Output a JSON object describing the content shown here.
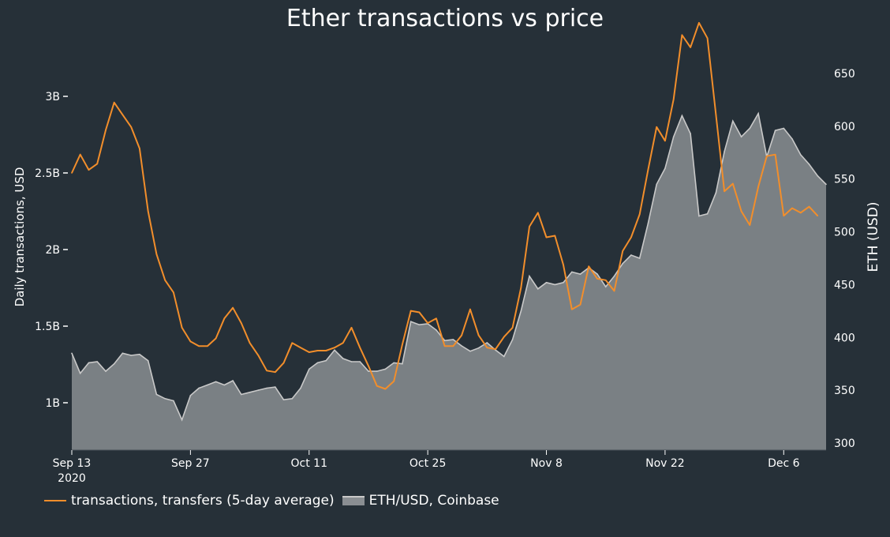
{
  "chart_data": {
    "type": "line+area",
    "title": "Ether transactions vs price",
    "ylabel_left": "Daily transactions, USD",
    "ylabel_right": "ETH (USD)",
    "x_start": "2020-09-13",
    "x_end": "2020-12-11",
    "x_ticks": [
      {
        "date": "2020-09-13",
        "label": "Sep 13",
        "sublabel": "2020"
      },
      {
        "date": "2020-09-27",
        "label": "Sep 27"
      },
      {
        "date": "2020-10-11",
        "label": "Oct 11"
      },
      {
        "date": "2020-10-25",
        "label": "Oct 25"
      },
      {
        "date": "2020-11-08",
        "label": "Nov 8"
      },
      {
        "date": "2020-11-22",
        "label": "Nov 22"
      },
      {
        "date": "2020-12-06",
        "label": "Dec 6"
      }
    ],
    "y_left": {
      "range": [
        0.7,
        3.55
      ],
      "ticks": [
        1,
        1.5,
        2,
        2.5,
        3
      ],
      "tick_labels": [
        "1B",
        "1.5B",
        "2B",
        "2.5B",
        "3B"
      ]
    },
    "y_right": {
      "range": [
        300,
        700
      ],
      "ticks": [
        300,
        350,
        400,
        450,
        500,
        550,
        600,
        650
      ],
      "tick_labels": [
        "300",
        "350",
        "400",
        "450",
        "500",
        "550",
        "600",
        "650"
      ]
    },
    "series": [
      {
        "name": "transactions, transfers (5-day average)",
        "axis": "left",
        "color": "#f28e2b",
        "unit": "billion USD",
        "points": [
          [
            "2020-09-13",
            2.5
          ],
          [
            "2020-09-14",
            2.62
          ],
          [
            "2020-09-15",
            2.52
          ],
          [
            "2020-09-16",
            2.56
          ],
          [
            "2020-09-17",
            2.78
          ],
          [
            "2020-09-18",
            2.96
          ],
          [
            "2020-09-19",
            2.88
          ],
          [
            "2020-09-20",
            2.8
          ],
          [
            "2020-09-21",
            2.66
          ],
          [
            "2020-09-22",
            2.25
          ],
          [
            "2020-09-23",
            1.97
          ],
          [
            "2020-09-24",
            1.8
          ],
          [
            "2020-09-25",
            1.72
          ],
          [
            "2020-09-26",
            1.49
          ],
          [
            "2020-09-27",
            1.4
          ],
          [
            "2020-09-28",
            1.37
          ],
          [
            "2020-09-29",
            1.37
          ],
          [
            "2020-09-30",
            1.42
          ],
          [
            "2020-10-01",
            1.55
          ],
          [
            "2020-10-02",
            1.62
          ],
          [
            "2020-10-03",
            1.52
          ],
          [
            "2020-10-04",
            1.39
          ],
          [
            "2020-10-05",
            1.31
          ],
          [
            "2020-10-06",
            1.21
          ],
          [
            "2020-10-07",
            1.2
          ],
          [
            "2020-10-08",
            1.26
          ],
          [
            "2020-10-09",
            1.39
          ],
          [
            "2020-10-10",
            1.36
          ],
          [
            "2020-10-11",
            1.33
          ],
          [
            "2020-10-12",
            1.34
          ],
          [
            "2020-10-13",
            1.34
          ],
          [
            "2020-10-14",
            1.36
          ],
          [
            "2020-10-15",
            1.39
          ],
          [
            "2020-10-16",
            1.49
          ],
          [
            "2020-10-17",
            1.36
          ],
          [
            "2020-10-18",
            1.24
          ],
          [
            "2020-10-19",
            1.11
          ],
          [
            "2020-10-20",
            1.09
          ],
          [
            "2020-10-21",
            1.14
          ],
          [
            "2020-10-22",
            1.38
          ],
          [
            "2020-10-23",
            1.6
          ],
          [
            "2020-10-24",
            1.59
          ],
          [
            "2020-10-25",
            1.52
          ],
          [
            "2020-10-26",
            1.55
          ],
          [
            "2020-10-27",
            1.37
          ],
          [
            "2020-10-28",
            1.37
          ],
          [
            "2020-10-29",
            1.44
          ],
          [
            "2020-10-30",
            1.61
          ],
          [
            "2020-10-31",
            1.44
          ],
          [
            "2020-11-01",
            1.36
          ],
          [
            "2020-11-02",
            1.35
          ],
          [
            "2020-11-03",
            1.43
          ],
          [
            "2020-11-04",
            1.49
          ],
          [
            "2020-11-05",
            1.75
          ],
          [
            "2020-11-06",
            2.15
          ],
          [
            "2020-11-07",
            2.24
          ],
          [
            "2020-11-08",
            2.08
          ],
          [
            "2020-11-09",
            2.09
          ],
          [
            "2020-11-10",
            1.9
          ],
          [
            "2020-11-11",
            1.61
          ],
          [
            "2020-11-12",
            1.64
          ],
          [
            "2020-11-13",
            1.89
          ],
          [
            "2020-11-14",
            1.81
          ],
          [
            "2020-11-15",
            1.8
          ],
          [
            "2020-11-16",
            1.73
          ],
          [
            "2020-11-17",
            1.99
          ],
          [
            "2020-11-18",
            2.08
          ],
          [
            "2020-11-19",
            2.23
          ],
          [
            "2020-11-20",
            2.52
          ],
          [
            "2020-11-21",
            2.8
          ],
          [
            "2020-11-22",
            2.71
          ],
          [
            "2020-11-23",
            2.98
          ],
          [
            "2020-11-24",
            3.4
          ],
          [
            "2020-11-25",
            3.32
          ],
          [
            "2020-11-26",
            3.48
          ],
          [
            "2020-11-27",
            3.38
          ],
          [
            "2020-11-28",
            2.88
          ],
          [
            "2020-11-29",
            2.38
          ],
          [
            "2020-11-30",
            2.43
          ],
          [
            "2020-12-01",
            2.25
          ],
          [
            "2020-12-02",
            2.16
          ],
          [
            "2020-12-03",
            2.41
          ],
          [
            "2020-12-04",
            2.61
          ],
          [
            "2020-12-05",
            2.62
          ],
          [
            "2020-12-06",
            2.22
          ],
          [
            "2020-12-07",
            2.27
          ],
          [
            "2020-12-08",
            2.24
          ],
          [
            "2020-12-09",
            2.28
          ],
          [
            "2020-12-10",
            2.22
          ]
        ]
      },
      {
        "name": "ETH/USD, Coinbase",
        "axis": "right",
        "color": "#8a8e92",
        "line_color": "#c9c9c9",
        "unit": "USD",
        "points": [
          [
            "2020-09-13",
            385
          ],
          [
            "2020-09-14",
            366
          ],
          [
            "2020-09-15",
            376
          ],
          [
            "2020-09-16",
            377
          ],
          [
            "2020-09-17",
            368
          ],
          [
            "2020-09-18",
            375
          ],
          [
            "2020-09-19",
            385
          ],
          [
            "2020-09-20",
            383
          ],
          [
            "2020-09-21",
            384
          ],
          [
            "2020-09-22",
            378
          ],
          [
            "2020-09-23",
            346
          ],
          [
            "2020-09-24",
            342
          ],
          [
            "2020-09-25",
            340
          ],
          [
            "2020-09-26",
            322
          ],
          [
            "2020-09-27",
            345
          ],
          [
            "2020-09-28",
            352
          ],
          [
            "2020-09-29",
            355
          ],
          [
            "2020-09-30",
            358
          ],
          [
            "2020-10-01",
            355
          ],
          [
            "2020-10-02",
            359
          ],
          [
            "2020-10-03",
            346
          ],
          [
            "2020-10-04",
            348
          ],
          [
            "2020-10-05",
            350
          ],
          [
            "2020-10-06",
            352
          ],
          [
            "2020-10-07",
            353
          ],
          [
            "2020-10-08",
            341
          ],
          [
            "2020-10-09",
            342
          ],
          [
            "2020-10-10",
            352
          ],
          [
            "2020-10-11",
            370
          ],
          [
            "2020-10-12",
            376
          ],
          [
            "2020-10-13",
            378
          ],
          [
            "2020-10-14",
            388
          ],
          [
            "2020-10-15",
            380
          ],
          [
            "2020-10-16",
            377
          ],
          [
            "2020-10-17",
            377
          ],
          [
            "2020-10-18",
            368
          ],
          [
            "2020-10-19",
            368
          ],
          [
            "2020-10-20",
            370
          ],
          [
            "2020-10-21",
            376
          ],
          [
            "2020-10-22",
            375
          ],
          [
            "2020-10-23",
            415
          ],
          [
            "2020-10-24",
            412
          ],
          [
            "2020-10-25",
            413
          ],
          [
            "2020-10-26",
            407
          ],
          [
            "2020-10-27",
            397
          ],
          [
            "2020-10-28",
            398
          ],
          [
            "2020-10-29",
            392
          ],
          [
            "2020-10-30",
            387
          ],
          [
            "2020-10-31",
            390
          ],
          [
            "2020-11-01",
            395
          ],
          [
            "2020-11-02",
            388
          ],
          [
            "2020-11-03",
            382
          ],
          [
            "2020-11-04",
            398
          ],
          [
            "2020-11-05",
            425
          ],
          [
            "2020-11-06",
            458
          ],
          [
            "2020-11-07",
            446
          ],
          [
            "2020-11-08",
            452
          ],
          [
            "2020-11-09",
            450
          ],
          [
            "2020-11-10",
            452
          ],
          [
            "2020-11-11",
            462
          ],
          [
            "2020-11-12",
            460
          ],
          [
            "2020-11-13",
            466
          ],
          [
            "2020-11-14",
            460
          ],
          [
            "2020-11-15",
            448
          ],
          [
            "2020-11-16",
            458
          ],
          [
            "2020-11-17",
            470
          ],
          [
            "2020-11-18",
            478
          ],
          [
            "2020-11-19",
            475
          ],
          [
            "2020-11-20",
            508
          ],
          [
            "2020-11-21",
            545
          ],
          [
            "2020-11-22",
            560
          ],
          [
            "2020-11-23",
            590
          ],
          [
            "2020-11-24",
            610
          ],
          [
            "2020-11-25",
            593
          ],
          [
            "2020-11-26",
            515
          ],
          [
            "2020-11-27",
            517
          ],
          [
            "2020-11-28",
            537
          ],
          [
            "2020-11-29",
            576
          ],
          [
            "2020-11-30",
            605
          ],
          [
            "2020-12-01",
            590
          ],
          [
            "2020-12-02",
            598
          ],
          [
            "2020-12-03",
            612
          ],
          [
            "2020-12-04",
            571
          ],
          [
            "2020-12-05",
            596
          ],
          [
            "2020-12-06",
            598
          ],
          [
            "2020-12-07",
            588
          ],
          [
            "2020-12-08",
            573
          ],
          [
            "2020-12-09",
            564
          ],
          [
            "2020-12-10",
            553
          ],
          [
            "2020-12-11",
            545
          ]
        ]
      }
    ],
    "grid": false,
    "legend_position": "bottom-left"
  }
}
